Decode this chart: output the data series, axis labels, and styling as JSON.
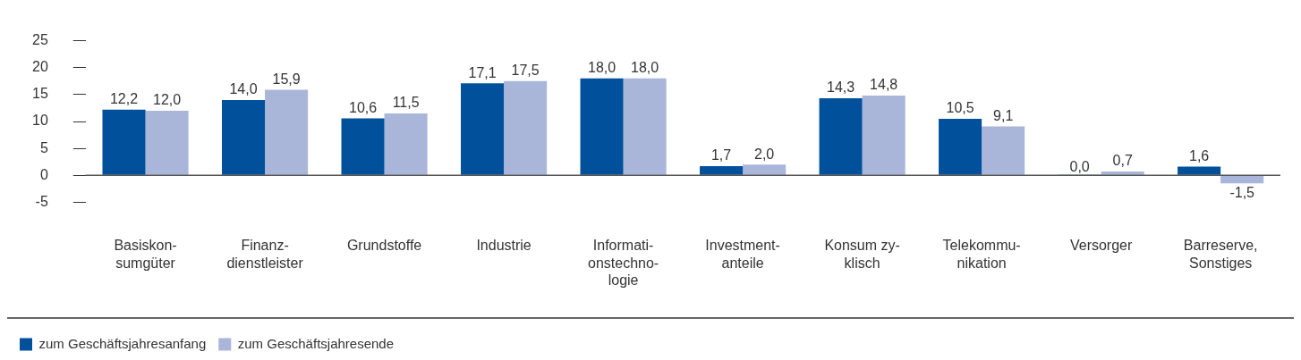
{
  "chart_data": {
    "type": "bar",
    "categories": [
      "Basiskon-\nsumgüter",
      "Finanz-\ndienstleister",
      "Grundstoffe",
      "Industrie",
      "Informati-\nonstechno-\nlogie",
      "Investment-\nanteile",
      "Konsum zy-\nklisch",
      "Telekommu-\nnikation",
      "Versorger",
      "Barreserve,\nSonstiges"
    ],
    "series": [
      {
        "name": "zum Geschäftsjahresanfang",
        "color": "#00509b",
        "values": [
          12.2,
          14.0,
          10.6,
          17.1,
          18.0,
          1.7,
          14.3,
          10.5,
          0.0,
          1.6
        ],
        "value_labels": [
          "12,2",
          "14,0",
          "10,6",
          "17,1",
          "18,0",
          "1,7",
          "14,3",
          "10,5",
          "0,0",
          "1,6"
        ]
      },
      {
        "name": "zum Geschäftsjahresende",
        "color": "#a9b6da",
        "values": [
          12.0,
          15.9,
          11.5,
          17.5,
          18.0,
          2.0,
          14.8,
          9.1,
          0.7,
          -1.5
        ],
        "value_labels": [
          "12,0",
          "15,9",
          "11,5",
          "17,5",
          "18,0",
          "2,0",
          "14,8",
          "9,1",
          "0,7",
          "-1,5"
        ]
      }
    ],
    "ylim": [
      -5,
      25
    ],
    "yticks": [
      -5,
      0,
      5,
      10,
      15,
      20,
      25
    ],
    "legend": "bottom left"
  }
}
